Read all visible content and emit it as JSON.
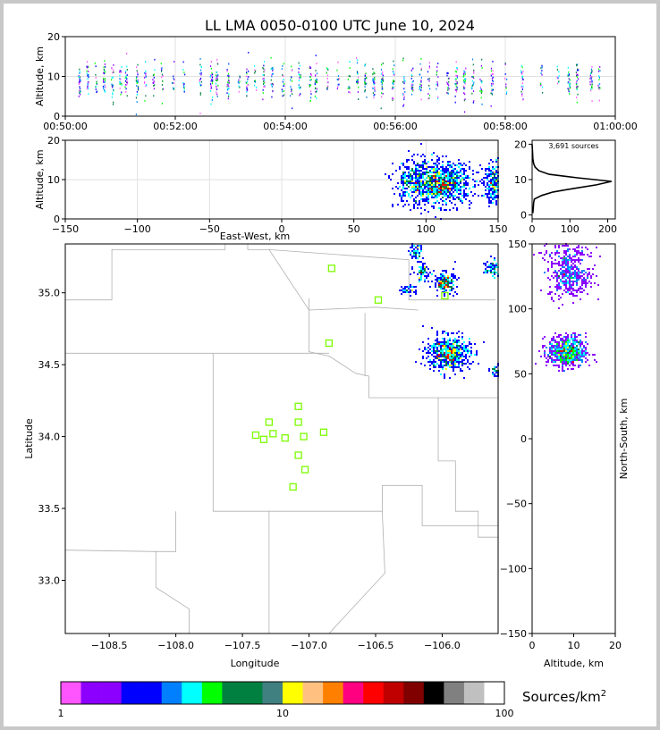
{
  "title": "LL LMA 0050-0100 UTC June 10, 2024",
  "chart_data": [
    {
      "id": "time_height",
      "type": "scatter",
      "xlabel": "",
      "ylabel": "Altitude, km",
      "x_ticks": [
        "00:50:00",
        "00:52:00",
        "00:54:00",
        "00:56:00",
        "00:58:00",
        "01:00:00"
      ],
      "x_range_minutes": [
        0,
        10
      ],
      "ylim": [
        0,
        20
      ],
      "y_ticks": [
        0,
        10,
        20
      ],
      "grid": true,
      "time_columns_minutes": [
        0.25,
        0.4,
        0.55,
        0.7,
        0.85,
        1.0,
        1.1,
        1.3,
        1.45,
        1.6,
        1.75,
        1.95,
        2.15,
        2.45,
        2.65,
        2.75,
        2.95,
        3.15,
        3.3,
        3.45,
        3.6,
        3.75,
        3.95,
        4.1,
        4.25,
        4.45,
        4.55,
        4.75,
        4.95,
        5.15,
        5.3,
        5.45,
        5.6,
        5.75,
        5.95,
        6.15,
        6.3,
        6.45,
        6.6,
        6.75,
        6.95,
        7.1,
        7.25,
        7.4,
        7.55,
        7.75,
        8.0,
        8.3,
        8.65,
        8.95,
        9.15,
        9.3,
        9.55,
        9.7
      ]
    },
    {
      "id": "ew_altitude",
      "type": "heatmap",
      "xlabel": "East-West, km",
      "ylabel": "Altitude, km",
      "xlim": [
        -150,
        150
      ],
      "x_ticks": [
        -150,
        -100,
        -50,
        0,
        50,
        100,
        150
      ],
      "ylim": [
        0,
        20
      ],
      "y_ticks": [
        0,
        10,
        20
      ],
      "grid": true,
      "clusters": [
        {
          "x": 110,
          "y": 9,
          "sx": 11,
          "sy": 2.6,
          "n": 1000
        },
        {
          "x": 90,
          "y": 9,
          "sx": 6,
          "sy": 3,
          "n": 220
        },
        {
          "x": 148,
          "y": 9,
          "sx": 4,
          "sy": 2.5,
          "n": 250
        }
      ]
    },
    {
      "id": "altitude_histogram",
      "type": "line",
      "annotation": "3,691 sources",
      "xlim": [
        0,
        220
      ],
      "x_ticks": [
        0,
        100,
        200
      ],
      "ylim": [
        0,
        20
      ],
      "y_ticks": [
        0,
        10,
        20
      ],
      "profile": [
        {
          "alt": 0.5,
          "count": 2
        },
        {
          "alt": 2,
          "count": 3
        },
        {
          "alt": 3.5,
          "count": 4
        },
        {
          "alt": 4.5,
          "count": 6
        },
        {
          "alt": 5.5,
          "count": 25
        },
        {
          "alt": 6.5,
          "count": 55
        },
        {
          "alt": 7.5,
          "count": 110
        },
        {
          "alt": 8.5,
          "count": 170
        },
        {
          "alt": 9.5,
          "count": 210
        },
        {
          "alt": 10.5,
          "count": 120
        },
        {
          "alt": 11.5,
          "count": 45
        },
        {
          "alt": 12.5,
          "count": 18
        },
        {
          "alt": 13.5,
          "count": 8
        },
        {
          "alt": 14.5,
          "count": 4
        },
        {
          "alt": 16,
          "count": 2
        },
        {
          "alt": 18,
          "count": 1
        },
        {
          "alt": 20,
          "count": 0
        }
      ]
    },
    {
      "id": "plan_view",
      "type": "heatmap",
      "xlabel": "Longitude",
      "ylabel": "Latitude",
      "xlim": [
        -108.83,
        -105.58
      ],
      "x_ticks": [
        -108.5,
        -108.0,
        -107.5,
        -107.0,
        -106.5,
        -106.0
      ],
      "ylim": [
        32.63,
        35.34
      ],
      "y_ticks": [
        33.0,
        33.5,
        34.0,
        34.5,
        35.0
      ],
      "clusters": [
        {
          "lon": -105.95,
          "lat": 34.58,
          "sx": 0.08,
          "sy": 0.06,
          "n": 600
        },
        {
          "lon": -105.98,
          "lat": 35.07,
          "sx": 0.04,
          "sy": 0.035,
          "n": 200
        },
        {
          "lon": -106.15,
          "lat": 35.14,
          "sx": 0.03,
          "sy": 0.03,
          "n": 80
        },
        {
          "lon": -106.2,
          "lat": 35.28,
          "sx": 0.03,
          "sy": 0.03,
          "n": 60
        },
        {
          "lon": -105.62,
          "lat": 35.17,
          "sx": 0.03,
          "sy": 0.03,
          "n": 80
        },
        {
          "lon": -105.6,
          "lat": 34.46,
          "sx": 0.02,
          "sy": 0.02,
          "n": 40
        },
        {
          "lon": -106.25,
          "lat": 35.02,
          "sx": 0.03,
          "sy": 0.02,
          "n": 40
        }
      ],
      "stations": [
        {
          "lon": -106.83,
          "lat": 35.17
        },
        {
          "lon": -106.48,
          "lat": 34.95
        },
        {
          "lon": -105.98,
          "lat": 34.98
        },
        {
          "lon": -106.85,
          "lat": 34.65
        },
        {
          "lon": -107.08,
          "lat": 34.21
        },
        {
          "lon": -107.3,
          "lat": 34.1
        },
        {
          "lon": -107.08,
          "lat": 34.1
        },
        {
          "lon": -107.4,
          "lat": 34.01
        },
        {
          "lon": -107.27,
          "lat": 34.02
        },
        {
          "lon": -107.34,
          "lat": 33.98
        },
        {
          "lon": -107.18,
          "lat": 33.99
        },
        {
          "lon": -107.04,
          "lat": 34.0
        },
        {
          "lon": -106.89,
          "lat": 34.03
        },
        {
          "lon": -107.08,
          "lat": 33.87
        },
        {
          "lon": -107.03,
          "lat": 33.77
        },
        {
          "lon": -107.12,
          "lat": 33.65
        }
      ],
      "station_color": "#7cfc00"
    },
    {
      "id": "altitude_ns",
      "type": "heatmap",
      "xlabel": "Altitude, km",
      "ylabel": "North-South, km",
      "xlim": [
        0,
        20
      ],
      "x_ticks": [
        0,
        10,
        20
      ],
      "ylim": [
        -150,
        150
      ],
      "y_ticks": [
        -150,
        -100,
        -50,
        0,
        50,
        100,
        150
      ],
      "clusters": [
        {
          "x": 8.5,
          "y": 67,
          "sx": 2.3,
          "sy": 6,
          "n": 700
        },
        {
          "x": 9,
          "y": 125,
          "sx": 2.5,
          "sy": 8,
          "n": 350
        },
        {
          "x": 8,
          "y": 143,
          "sx": 3,
          "sy": 5,
          "n": 100
        }
      ]
    }
  ],
  "colorbar": {
    "label": "Sources/km",
    "label_sup": "2",
    "ticks": [
      "1",
      "10",
      "100"
    ],
    "colors": [
      "#ff55ff",
      "#8b00ff",
      "#8b00ff",
      "#0000ff",
      "#0000ff",
      "#0080ff",
      "#00ffff",
      "#00ff00",
      "#008040",
      "#008040",
      "#408080",
      "#ffff00",
      "#ffc080",
      "#ff8000",
      "#ff0080",
      "#ff0000",
      "#c00000",
      "#800000",
      "#000000",
      "#808080",
      "#c0c0c0",
      "#ffffff"
    ]
  }
}
